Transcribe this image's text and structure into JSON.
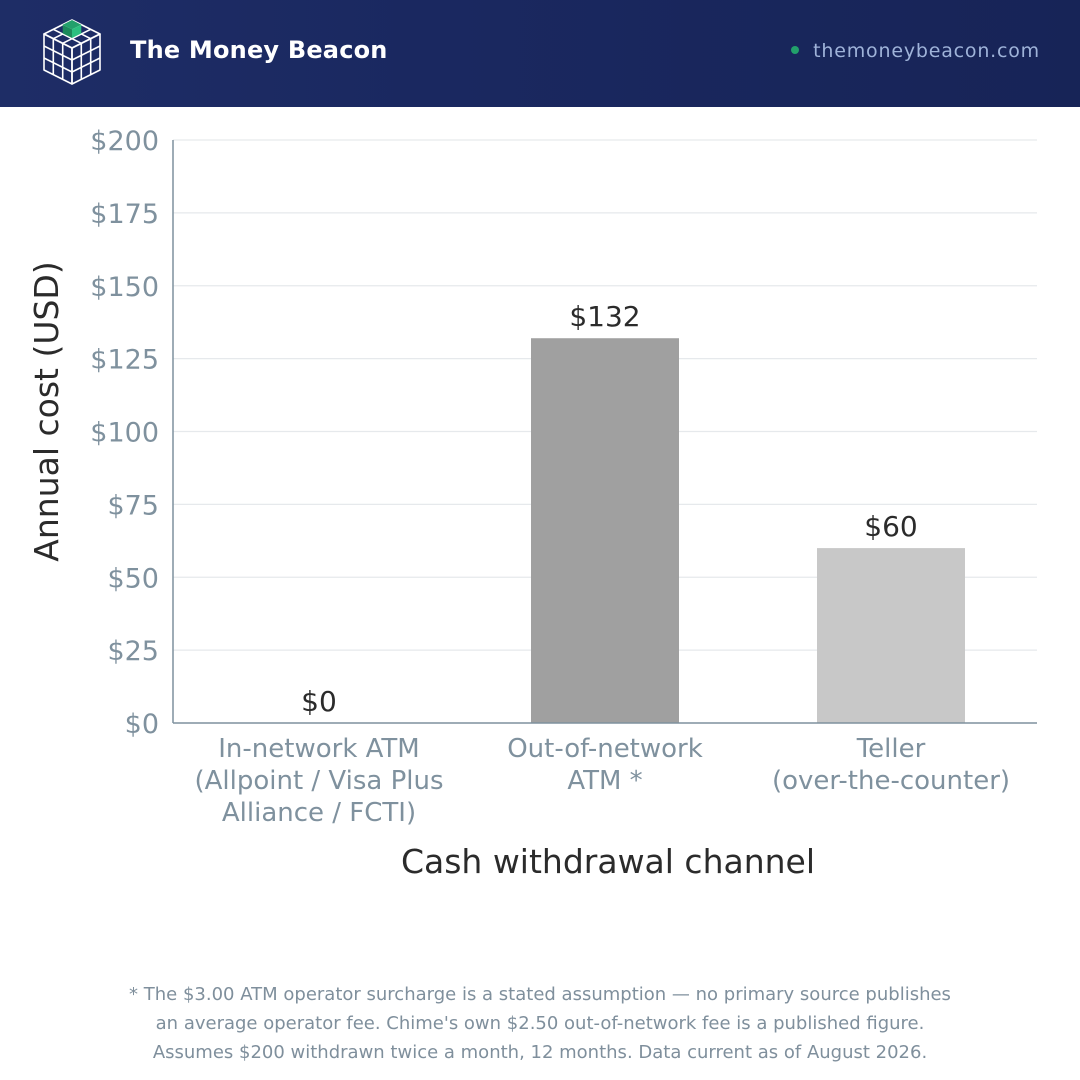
{
  "header": {
    "brand": "The Money Beacon",
    "site": "themoneybeacon.com",
    "logo_icon": "cube-grid-icon",
    "colors": {
      "header_bg": "#1b2960",
      "accent": "#22a06b"
    }
  },
  "chart_data": {
    "type": "bar",
    "categories": [
      [
        "In-network ATM",
        "(Allpoint / Visa Plus",
        "Alliance / FCTI)"
      ],
      [
        "Out-of-network",
        "ATM *"
      ],
      [
        "Teller",
        "(over-the-counter)"
      ]
    ],
    "values": [
      0,
      132,
      60
    ],
    "value_labels": [
      "$0",
      "$132",
      "$60"
    ],
    "bar_colors": [
      "#8f8f8f",
      "#a0a0a0",
      "#c8c8c8"
    ],
    "xlabel": "Cash withdrawal channel",
    "ylabel": "Annual cost (USD)",
    "ylim": [
      0,
      200
    ],
    "yticks": [
      0,
      25,
      50,
      75,
      100,
      125,
      150,
      175,
      200
    ],
    "ytick_labels": [
      "$0",
      "$25",
      "$50",
      "$75",
      "$100",
      "$125",
      "$150",
      "$175",
      "$200"
    ],
    "grid": true
  },
  "footnote": {
    "lines": [
      "* The $3.00 ATM operator surcharge is a stated assumption — no primary source publishes",
      "an average operator fee. Chime's own $2.50 out-of-network fee is a published figure.",
      "Assumes $200 withdrawn twice a month, 12 months. Data current as of August 2026."
    ]
  }
}
